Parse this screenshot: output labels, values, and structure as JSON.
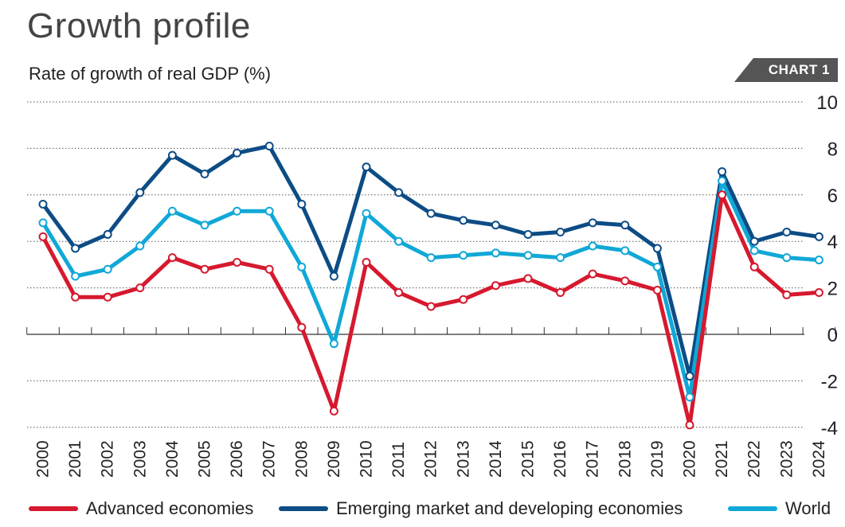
{
  "header": {
    "title": "Growth profile",
    "subtitle": "Rate of growth of real GDP (%)",
    "tag": "CHART 1"
  },
  "chart_data": {
    "type": "line",
    "title": "Growth profile",
    "subtitle": "Rate of growth of real GDP (%)",
    "x": [
      "2000",
      "2001",
      "2002",
      "2003",
      "2004",
      "2005",
      "2006",
      "2007",
      "2008",
      "2009",
      "2010",
      "2011",
      "2012",
      "2013",
      "2014",
      "2015",
      "2016",
      "2017",
      "2018",
      "2019",
      "2020",
      "2021",
      "2022",
      "2023",
      "2024"
    ],
    "ylim": [
      -4,
      10
    ],
    "yticks": [
      -4,
      -2,
      0,
      2,
      4,
      6,
      8,
      10
    ],
    "grid": "horizontal-dotted",
    "y_axis_side": "right",
    "legend_placement": "bottom",
    "series": [
      {
        "name": "Emerging market and developing economies",
        "color": "#0d4c85",
        "values": [
          5.6,
          3.7,
          4.3,
          6.1,
          7.7,
          6.9,
          7.8,
          8.1,
          5.6,
          2.5,
          7.2,
          6.1,
          5.2,
          4.9,
          4.7,
          4.3,
          4.4,
          4.8,
          4.7,
          3.7,
          -1.8,
          7.0,
          4.0,
          4.4,
          4.2
        ]
      },
      {
        "name": "World",
        "color": "#10a8d6",
        "values": [
          4.8,
          2.5,
          2.8,
          3.8,
          5.3,
          4.7,
          5.3,
          5.3,
          2.9,
          -0.4,
          5.2,
          4.0,
          3.3,
          3.4,
          3.5,
          3.4,
          3.3,
          3.8,
          3.6,
          2.9,
          -2.7,
          6.6,
          3.6,
          3.3,
          3.2
        ]
      },
      {
        "name": "Advanced economies",
        "color": "#d6192e",
        "values": [
          4.2,
          1.6,
          1.6,
          2.0,
          3.3,
          2.8,
          3.1,
          2.8,
          0.3,
          -3.3,
          3.1,
          1.8,
          1.2,
          1.5,
          2.1,
          2.4,
          1.8,
          2.6,
          2.3,
          1.9,
          -3.9,
          6.0,
          2.9,
          1.7,
          1.8
        ]
      }
    ],
    "legend": [
      {
        "label": "Advanced economies",
        "color": "#d6192e"
      },
      {
        "label": "Emerging market and developing economies",
        "color": "#0d4c85"
      },
      {
        "label": "World",
        "color": "#10a8d6"
      }
    ]
  }
}
